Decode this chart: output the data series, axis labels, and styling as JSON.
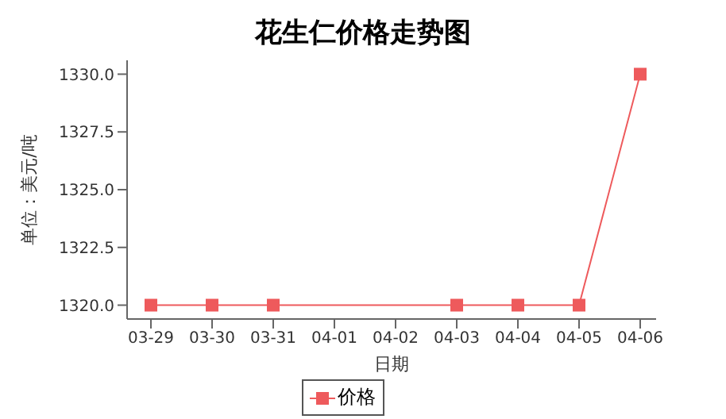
{
  "chart_data": {
    "type": "line",
    "title": "花生仁价格走势图",
    "xlabel": "日期",
    "ylabel": "单位：美元/吨",
    "categories": [
      "03-29",
      "03-30",
      "03-31",
      "04-01",
      "04-02",
      "04-03",
      "04-04",
      "04-05",
      "04-06"
    ],
    "series": [
      {
        "name": "价格",
        "color": "#ee5a5c",
        "values": [
          1320,
          1320,
          1320,
          null,
          null,
          1320,
          1320,
          1320,
          1330
        ]
      }
    ],
    "ylim": [
      1319.4,
      1330.6
    ],
    "yticks": [
      {
        "value": 1320,
        "label": "1320.0"
      },
      {
        "value": 1322.5,
        "label": "1322.5"
      },
      {
        "value": 1325,
        "label": "1325.0"
      },
      {
        "value": 1327.5,
        "label": "1327.5"
      },
      {
        "value": 1330,
        "label": "1330.0"
      }
    ],
    "grid": false,
    "legend": "bottom",
    "marker": "square",
    "line_style": "solid"
  }
}
